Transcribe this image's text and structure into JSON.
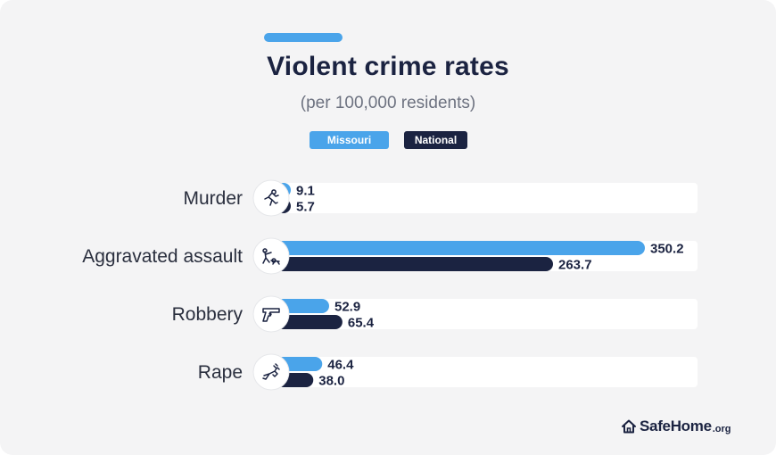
{
  "header": {
    "title": "Violent crime rates",
    "subtitle": "(per 100,000 residents)"
  },
  "legend": {
    "state_label": "Missouri",
    "national_label": "National"
  },
  "colors": {
    "state": "#4aa4ea",
    "national": "#1b2341",
    "track": "#ffffff",
    "background": "#f4f4f5"
  },
  "chart_data": {
    "type": "bar",
    "orientation": "horizontal",
    "title": "Violent crime rates",
    "subtitle": "(per 100,000 residents)",
    "categories": [
      "Murder",
      "Aggravated assault",
      "Robbery",
      "Rape"
    ],
    "category_icons": [
      "fleeing-figure-icon",
      "assault-icon",
      "handgun-icon",
      "assault-hand-icon"
    ],
    "series": [
      {
        "name": "Missouri",
        "values": [
          9.1,
          350.2,
          52.9,
          46.4
        ]
      },
      {
        "name": "National",
        "values": [
          5.7,
          263.7,
          65.4,
          38.0
        ]
      }
    ],
    "value_labels": {
      "Missouri": [
        "9.1",
        "350.2",
        "52.9",
        "46.4"
      ],
      "National": [
        "5.7",
        "263.7",
        "65.4",
        "38.0"
      ]
    },
    "legend_position": "top-center",
    "grid": false
  },
  "footer": {
    "brand": "SafeHome",
    "brand_tld": ".org"
  }
}
